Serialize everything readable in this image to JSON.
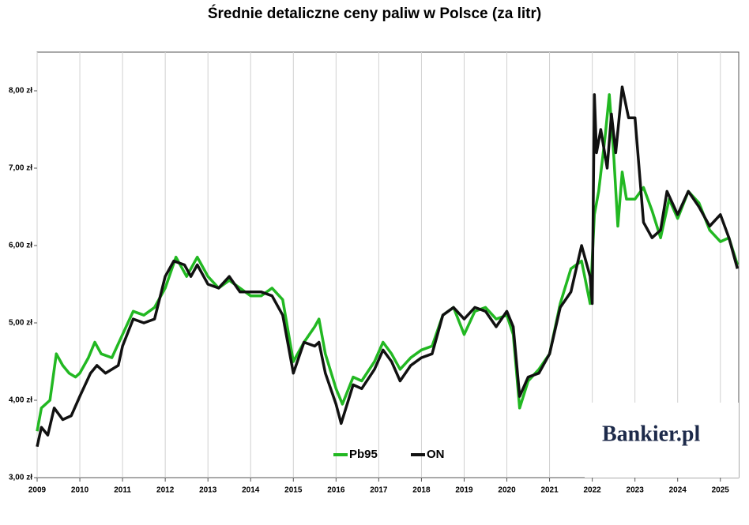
{
  "chart_data": {
    "type": "line",
    "title": "Średnie detaliczne ceny paliw w Polsce (za litr)",
    "watermark": "Bankier.pl",
    "xlim": [
      2009,
      2025.43
    ],
    "xticks": [
      2009,
      2010,
      2011,
      2012,
      2013,
      2014,
      2015,
      2016,
      2017,
      2018,
      2019,
      2020,
      2021,
      2022,
      2023,
      2024,
      2025
    ],
    "ylim": [
      3,
      8.5
    ],
    "yticks": [
      {
        "value": 3,
        "label": "3,00 zł"
      },
      {
        "value": 4,
        "label": "4,00 zł"
      },
      {
        "value": 5,
        "label": "5,00 zł"
      },
      {
        "value": 6,
        "label": "6,00 zł"
      },
      {
        "value": 7,
        "label": "7,00 zł"
      },
      {
        "value": 8,
        "label": "8,00 zł"
      }
    ],
    "grid": true,
    "legend": "bottom",
    "series": [
      {
        "name": "Pb95",
        "color": "#22b822",
        "x": [
          2009,
          2009.1,
          2009.3,
          2009.45,
          2009.6,
          2009.75,
          2009.9,
          2010,
          2010.2,
          2010.35,
          2010.5,
          2010.75,
          2011,
          2011.25,
          2011.5,
          2011.75,
          2012,
          2012.25,
          2012.5,
          2012.75,
          2013,
          2013.25,
          2013.5,
          2013.75,
          2014,
          2014.25,
          2014.5,
          2014.75,
          2015,
          2015.25,
          2015.5,
          2015.6,
          2015.75,
          2016,
          2016.15,
          2016.4,
          2016.6,
          2016.9,
          2017.1,
          2017.3,
          2017.5,
          2017.75,
          2018,
          2018.25,
          2018.5,
          2018.75,
          2019,
          2019.25,
          2019.5,
          2019.75,
          2020,
          2020.15,
          2020.3,
          2020.5,
          2020.75,
          2021,
          2021.25,
          2021.5,
          2021.75,
          2021.95,
          2022.05,
          2022.15,
          2022.3,
          2022.4,
          2022.5,
          2022.6,
          2022.7,
          2022.8,
          2023,
          2023.2,
          2023.4,
          2023.6,
          2023.8,
          2024,
          2024.25,
          2024.5,
          2024.75,
          2025,
          2025.2,
          2025.4
        ],
        "values": [
          3.6,
          3.9,
          4.0,
          4.6,
          4.45,
          4.35,
          4.3,
          4.35,
          4.55,
          4.75,
          4.6,
          4.55,
          4.85,
          5.15,
          5.1,
          5.2,
          5.45,
          5.85,
          5.6,
          5.85,
          5.6,
          5.45,
          5.55,
          5.45,
          5.35,
          5.35,
          5.45,
          5.3,
          4.5,
          4.75,
          4.95,
          5.05,
          4.6,
          4.15,
          3.95,
          4.3,
          4.25,
          4.5,
          4.75,
          4.6,
          4.4,
          4.55,
          4.65,
          4.7,
          5.1,
          5.2,
          4.85,
          5.15,
          5.2,
          5.05,
          5.1,
          4.85,
          3.9,
          4.25,
          4.4,
          4.6,
          5.25,
          5.7,
          5.8,
          5.25,
          6.4,
          6.7,
          7.4,
          7.95,
          7.2,
          6.25,
          6.95,
          6.6,
          6.6,
          6.75,
          6.45,
          6.1,
          6.6,
          6.35,
          6.7,
          6.55,
          6.2,
          6.05,
          6.1,
          5.75
        ]
      },
      {
        "name": "ON",
        "color": "#111111",
        "x": [
          2009,
          2009.1,
          2009.25,
          2009.4,
          2009.6,
          2009.8,
          2010,
          2010.25,
          2010.4,
          2010.6,
          2010.9,
          2011,
          2011.25,
          2011.5,
          2011.75,
          2012,
          2012.2,
          2012.45,
          2012.6,
          2012.75,
          2013,
          2013.25,
          2013.5,
          2013.75,
          2014,
          2014.25,
          2014.5,
          2014.75,
          2015,
          2015.25,
          2015.5,
          2015.6,
          2015.75,
          2016,
          2016.12,
          2016.4,
          2016.6,
          2016.9,
          2017.1,
          2017.3,
          2017.5,
          2017.75,
          2018,
          2018.25,
          2018.5,
          2018.75,
          2019,
          2019.25,
          2019.5,
          2019.75,
          2020,
          2020.15,
          2020.3,
          2020.5,
          2020.75,
          2021,
          2021.25,
          2021.5,
          2021.75,
          2021.95,
          2022,
          2022.05,
          2022.1,
          2022.2,
          2022.35,
          2022.45,
          2022.55,
          2022.7,
          2022.85,
          2023,
          2023.2,
          2023.4,
          2023.6,
          2023.75,
          2024,
          2024.25,
          2024.5,
          2024.75,
          2025,
          2025.2,
          2025.4
        ],
        "values": [
          3.4,
          3.65,
          3.55,
          3.9,
          3.75,
          3.8,
          4.05,
          4.35,
          4.45,
          4.35,
          4.45,
          4.7,
          5.05,
          5.0,
          5.05,
          5.6,
          5.8,
          5.75,
          5.6,
          5.75,
          5.5,
          5.45,
          5.6,
          5.4,
          5.4,
          5.4,
          5.35,
          5.1,
          4.35,
          4.75,
          4.7,
          4.75,
          4.35,
          3.95,
          3.7,
          4.2,
          4.15,
          4.4,
          4.65,
          4.5,
          4.25,
          4.45,
          4.55,
          4.6,
          5.1,
          5.2,
          5.05,
          5.2,
          5.15,
          4.95,
          5.15,
          4.95,
          4.05,
          4.3,
          4.35,
          4.6,
          5.2,
          5.4,
          6.0,
          5.6,
          5.25,
          7.95,
          7.2,
          7.5,
          7.0,
          7.7,
          7.2,
          8.05,
          7.65,
          7.65,
          6.3,
          6.1,
          6.2,
          6.7,
          6.4,
          6.7,
          6.5,
          6.25,
          6.4,
          6.1,
          5.7
        ]
      }
    ]
  }
}
